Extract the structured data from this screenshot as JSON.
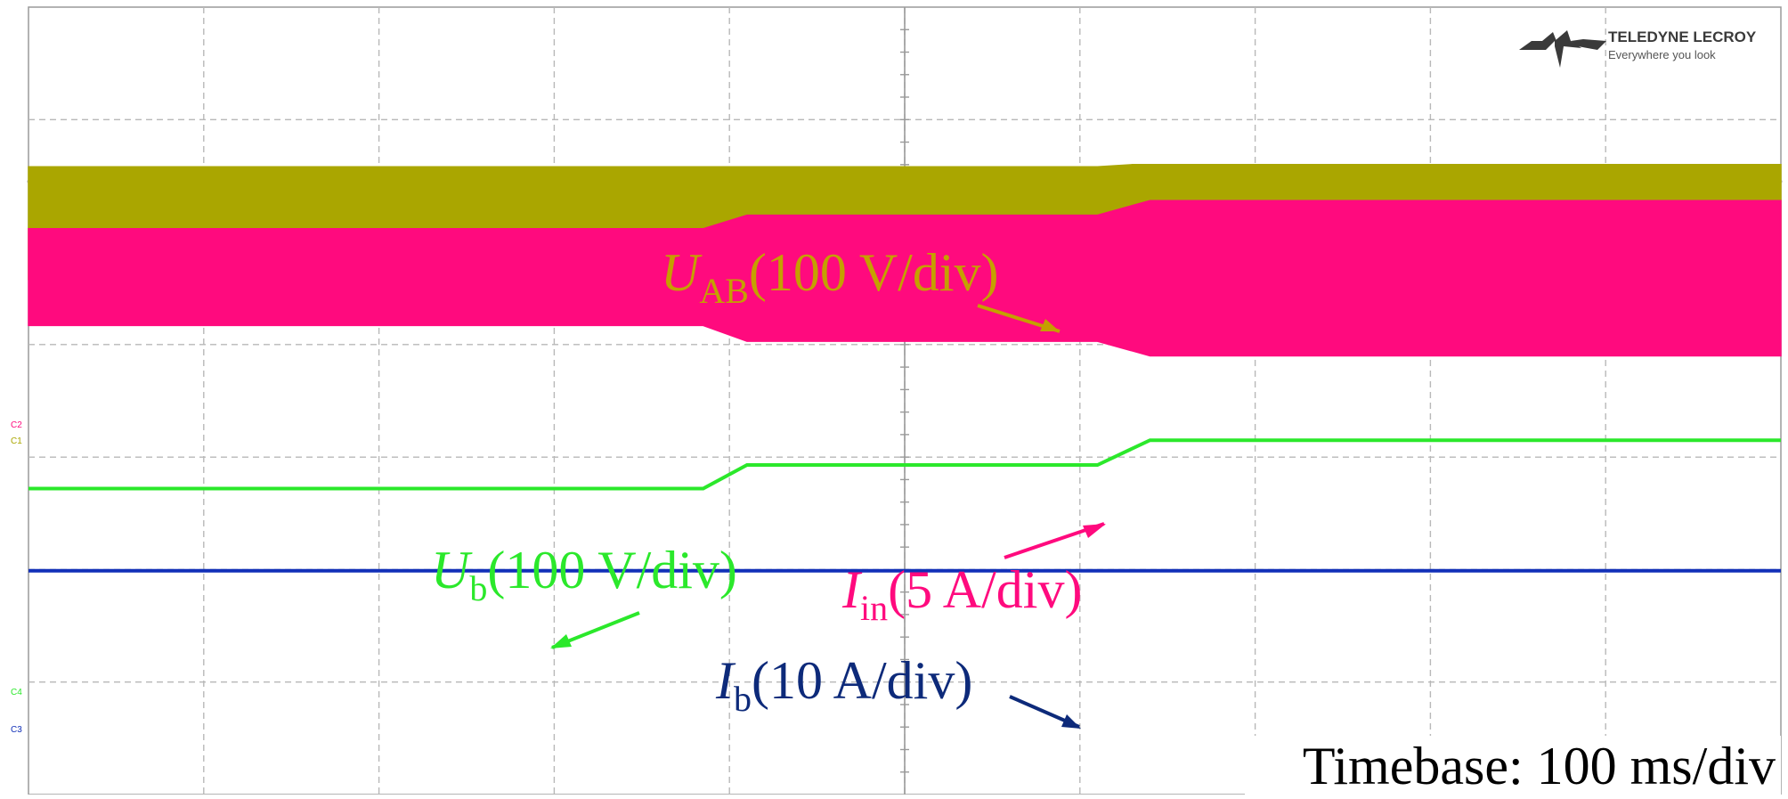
{
  "chart_data": {
    "type": "line",
    "grid": true,
    "x_divisions": 10,
    "y_divisions": 7,
    "timebase": "Timebase: 100 ms/div",
    "logo": {
      "brand": "TELEDYNE LECROY",
      "tagline": "Everywhere you look"
    },
    "channel_tags": [
      "C2",
      "C1",
      "C4",
      "C3"
    ],
    "traces": [
      {
        "name": "U_AB",
        "var": "U",
        "sub": "AB",
        "scale": "(100 V/div)",
        "color": "#aaa600",
        "kind": "envelope",
        "steps": [
          {
            "t_div": 0.0,
            "top": 2.08,
            "bottom": 1.08
          },
          {
            "t_div": 6.1,
            "top": 2.08,
            "bottom": 1.08
          },
          {
            "t_div": 6.3,
            "top": 2.1,
            "bottom": 1.08
          },
          {
            "t_div": 10.0,
            "top": 2.1,
            "bottom": 1.08
          }
        ]
      },
      {
        "name": "I_in",
        "var": "I",
        "sub": "in",
        "scale": "(5 A/div)",
        "color": "#ff0a7e",
        "kind": "envelope",
        "steps": [
          {
            "t_div": 0.0,
            "top": 1.53,
            "bottom": 0.67
          },
          {
            "t_div": 3.85,
            "top": 1.53,
            "bottom": 0.67
          },
          {
            "t_div": 4.1,
            "top": 1.65,
            "bottom": 0.53
          },
          {
            "t_div": 6.1,
            "top": 1.65,
            "bottom": 0.53
          },
          {
            "t_div": 6.4,
            "top": 1.78,
            "bottom": 0.4
          },
          {
            "t_div": 10.0,
            "top": 1.78,
            "bottom": 0.4
          }
        ]
      },
      {
        "name": "U_b",
        "var": "U",
        "sub": "b",
        "scale": "(100 V/div)",
        "color": "#2be82b",
        "kind": "line",
        "steps": [
          {
            "t_div": 0.0,
            "y": -0.78
          },
          {
            "t_div": 3.85,
            "y": -0.78
          },
          {
            "t_div": 4.1,
            "y": -0.57
          },
          {
            "t_div": 6.1,
            "y": -0.57
          },
          {
            "t_div": 6.4,
            "y": -0.35
          },
          {
            "t_div": 10.0,
            "y": -0.35
          }
        ]
      },
      {
        "name": "I_b",
        "var": "I",
        "sub": "b",
        "scale": "(10 A/div)",
        "color": "#1230b8",
        "kind": "line",
        "steps": [
          {
            "t_div": 0.0,
            "y": -1.51
          },
          {
            "t_div": 10.0,
            "y": -1.51
          }
        ]
      }
    ]
  }
}
